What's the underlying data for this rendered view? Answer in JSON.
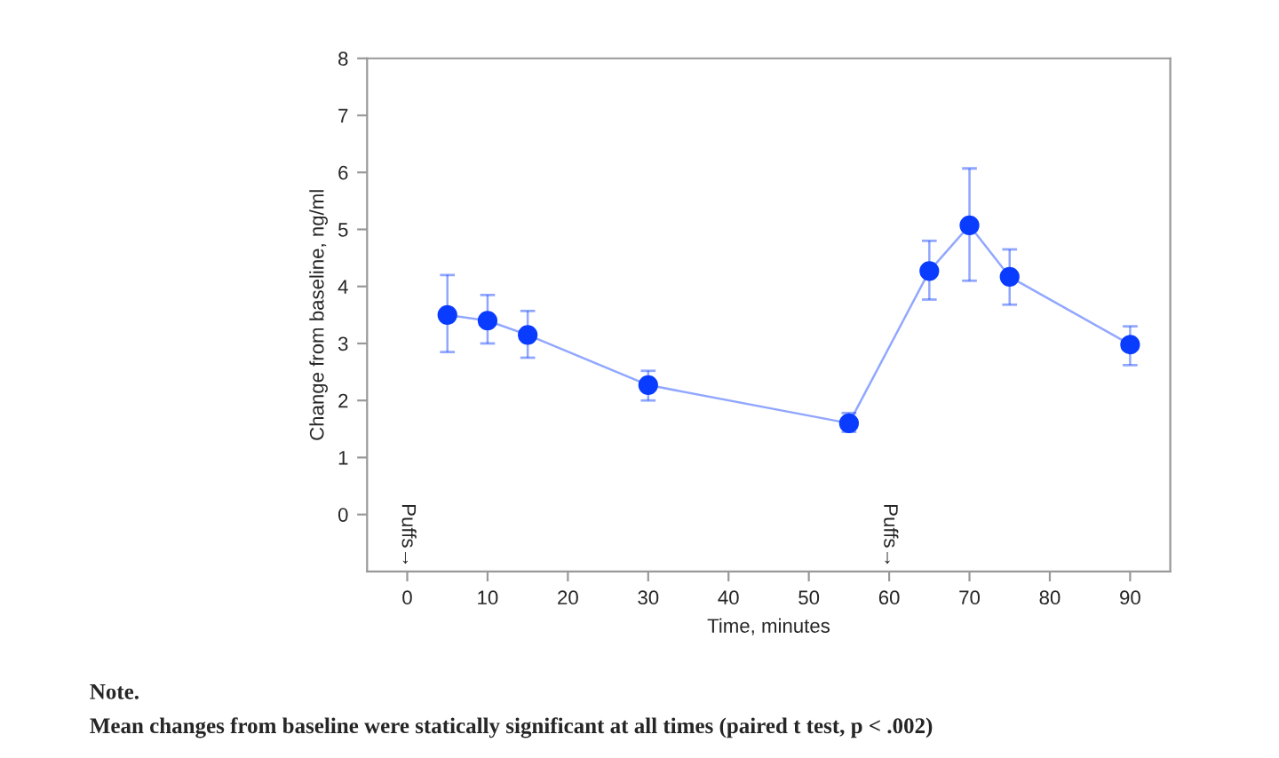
{
  "chart_data": {
    "type": "line",
    "xlabel": "Time, minutes",
    "ylabel": "Change from baseline, ng/ml",
    "x": [
      5,
      10,
      15,
      30,
      55,
      65,
      70,
      75,
      90
    ],
    "series": [
      {
        "color": "#0a3cff",
        "values": [
          3.5,
          3.4,
          3.15,
          2.27,
          1.6,
          4.27,
          5.07,
          4.17,
          2.98
        ],
        "errors": [
          [
            2.85,
            4.2
          ],
          [
            3.0,
            3.85
          ],
          [
            2.75,
            3.57
          ],
          [
            2.0,
            2.52
          ],
          [
            1.45,
            1.78
          ],
          [
            3.77,
            4.8
          ],
          [
            4.1,
            6.07
          ],
          [
            3.68,
            4.65
          ],
          [
            2.62,
            3.3
          ]
        ]
      }
    ],
    "xlim": [
      -5,
      95
    ],
    "xticks": [
      0,
      10,
      20,
      30,
      40,
      50,
      60,
      70,
      80,
      90
    ],
    "ylim": [
      -1,
      8
    ],
    "yticks": [
      0,
      1,
      2,
      3,
      4,
      5,
      6,
      7,
      8
    ],
    "marker": "circle",
    "line_style": "solid",
    "grid": false,
    "legend": false,
    "annotations": [
      "Puffs→",
      "Puffs→",
      "Note.",
      "Mean changes from baseline were statically significant at all times (paired t test, p < .002)"
    ]
  }
}
